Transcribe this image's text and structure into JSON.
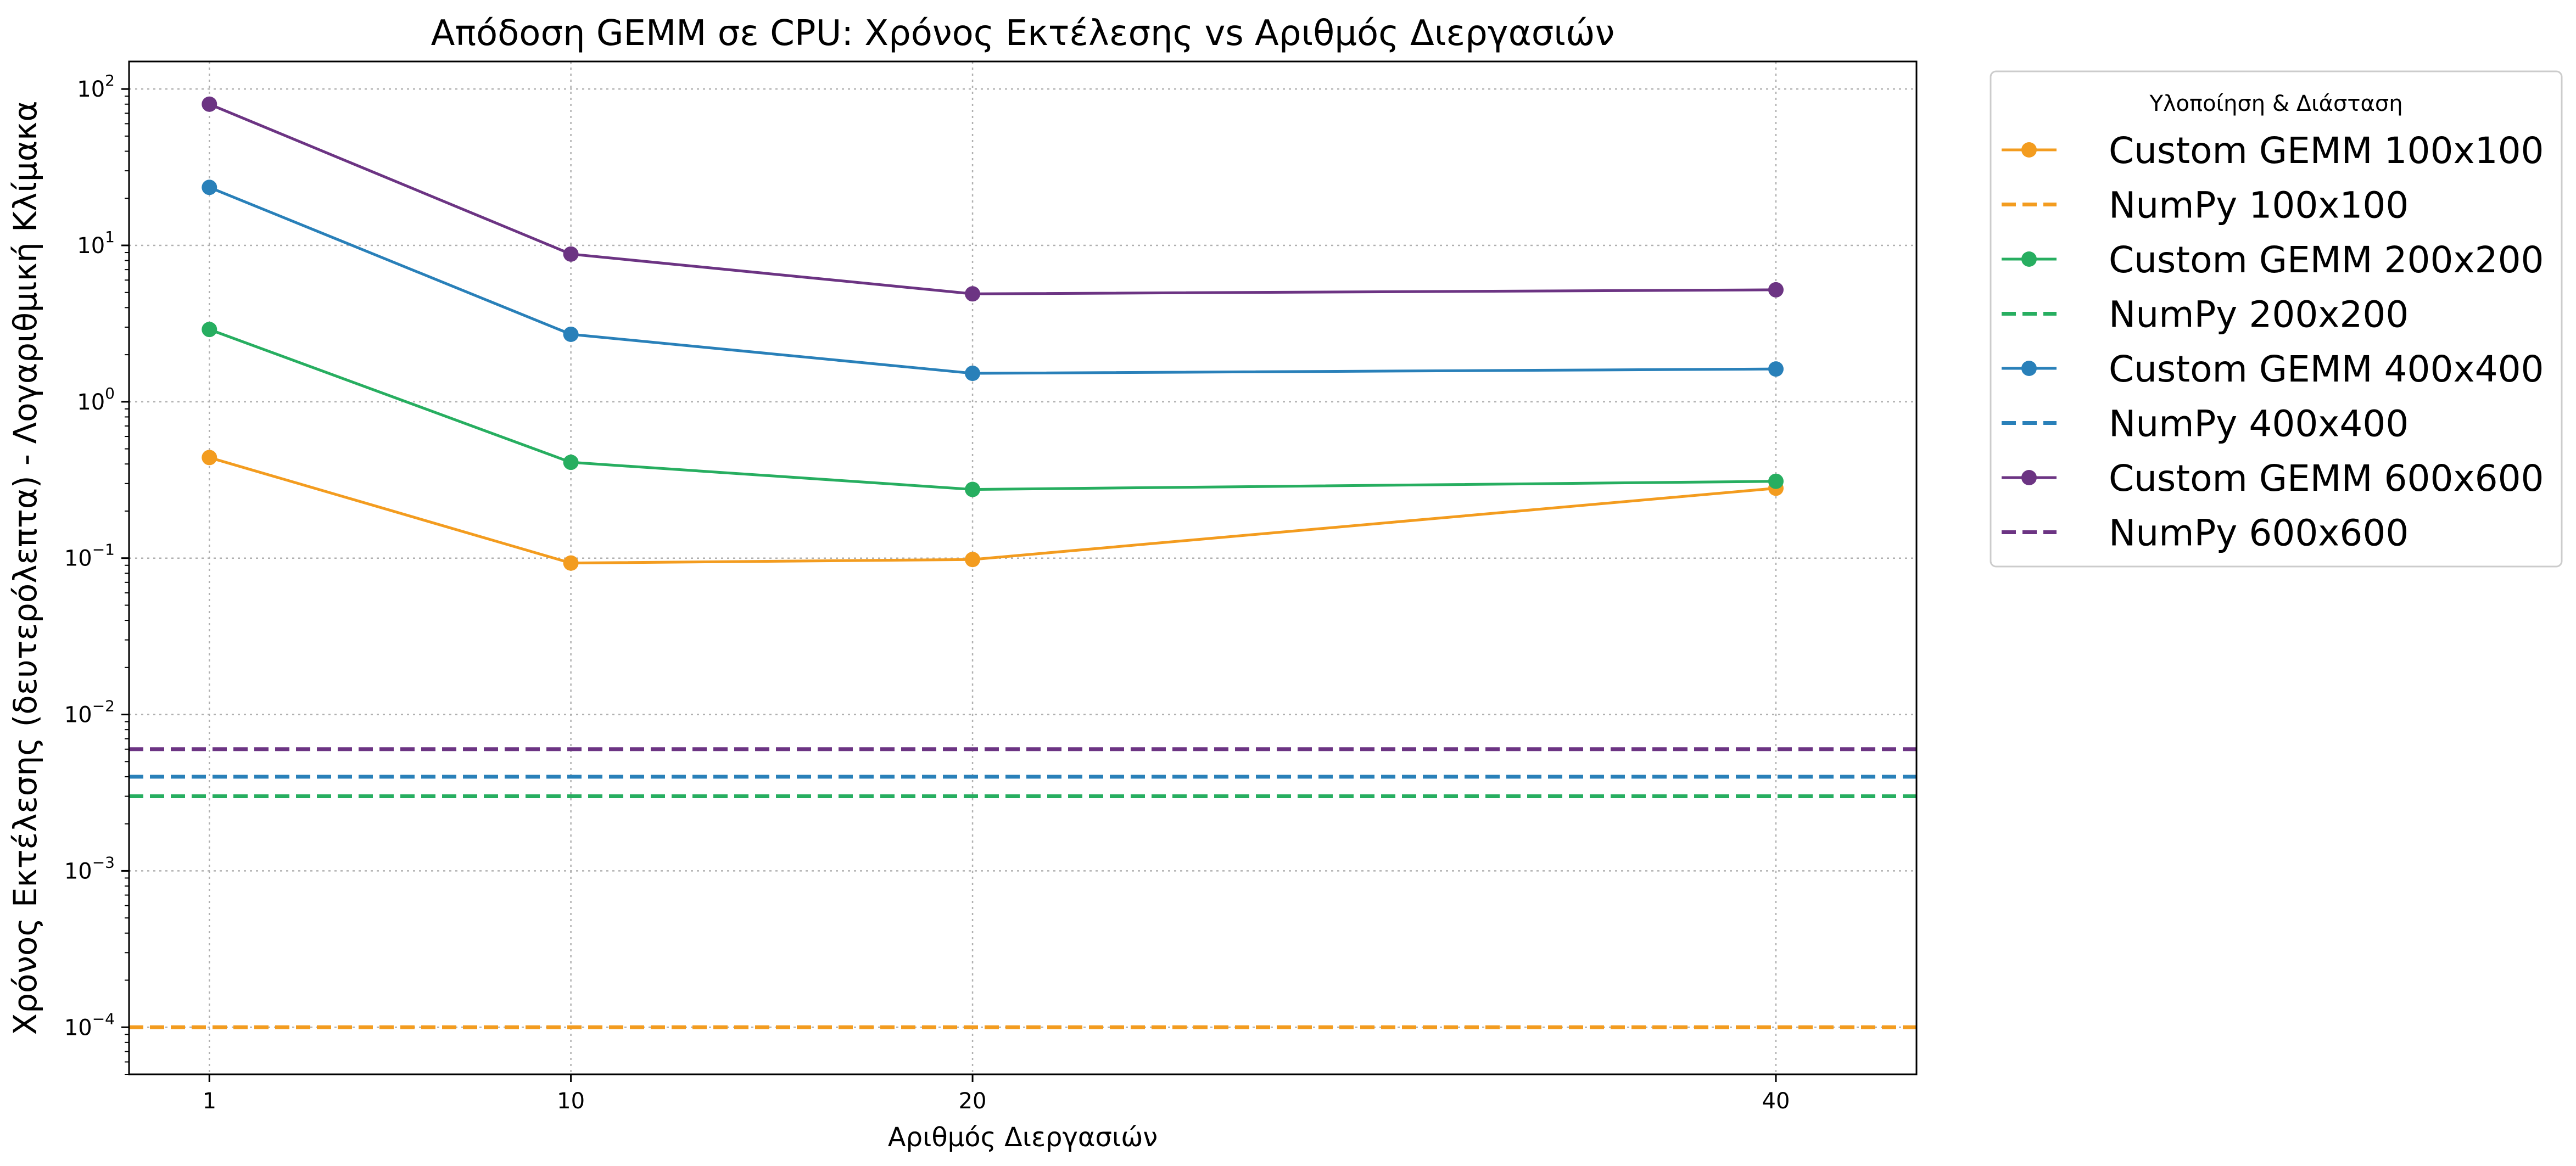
{
  "chart_data": {
    "type": "line",
    "title": "Απόδοση GEMM σε CPU: Χρόνος Εκτέλεσης vs Αριθμός Διεργασιών",
    "xlabel": "Αριθμός Διεργασιών",
    "ylabel": "Χρόνος Εκτέλεσης (δευτερόλεπτα) - Λογαριθμική Κλίμακα",
    "x_scale": "linear",
    "y_scale": "log",
    "xlim": [
      -1,
      43.5
    ],
    "ylim": [
      5e-05,
      150
    ],
    "x_ticks": [
      1,
      10,
      20,
      40
    ],
    "x_tick_labels": [
      "1",
      "10",
      "20",
      "40"
    ],
    "y_ticks": [
      0.0001,
      0.001,
      0.01,
      0.1,
      1,
      10,
      100
    ],
    "y_tick_labels": [
      {
        "base": "10",
        "exp": "−4"
      },
      {
        "base": "10",
        "exp": "−3"
      },
      {
        "base": "10",
        "exp": "−2"
      },
      {
        "base": "10",
        "exp": "−1"
      },
      {
        "base": "10",
        "exp": "0"
      },
      {
        "base": "10",
        "exp": "1"
      },
      {
        "base": "10",
        "exp": "2"
      }
    ],
    "grid": true,
    "legend": {
      "title": "Υλοποίηση & Διάσταση",
      "placement": "outside-top-right"
    },
    "x": [
      1,
      10,
      20,
      40
    ],
    "series": [
      {
        "name": "Custom GEMM 100x100",
        "kind": "line-marker",
        "color": "#F39C1F",
        "values": [
          0.44,
          0.093,
          0.098,
          0.28
        ]
      },
      {
        "name": "NumPy 100x100",
        "kind": "hline-dashed",
        "color": "#F39C1F",
        "value": 0.0001
      },
      {
        "name": "Custom GEMM 200x200",
        "kind": "line-marker",
        "color": "#27AE60",
        "values": [
          2.9,
          0.41,
          0.275,
          0.31
        ]
      },
      {
        "name": "NumPy 200x200",
        "kind": "hline-dashed",
        "color": "#27AE60",
        "value": 0.003
      },
      {
        "name": "Custom GEMM 400x400",
        "kind": "line-marker",
        "color": "#2980B9",
        "values": [
          23.5,
          2.7,
          1.52,
          1.62
        ]
      },
      {
        "name": "NumPy 400x400",
        "kind": "hline-dashed",
        "color": "#2980B9",
        "value": 0.004
      },
      {
        "name": "Custom GEMM 600x600",
        "kind": "line-marker",
        "color": "#6C3483",
        "values": [
          80,
          8.8,
          4.9,
          5.2
        ]
      },
      {
        "name": "NumPy 600x600",
        "kind": "hline-dashed",
        "color": "#6C3483",
        "value": 0.006
      }
    ]
  }
}
